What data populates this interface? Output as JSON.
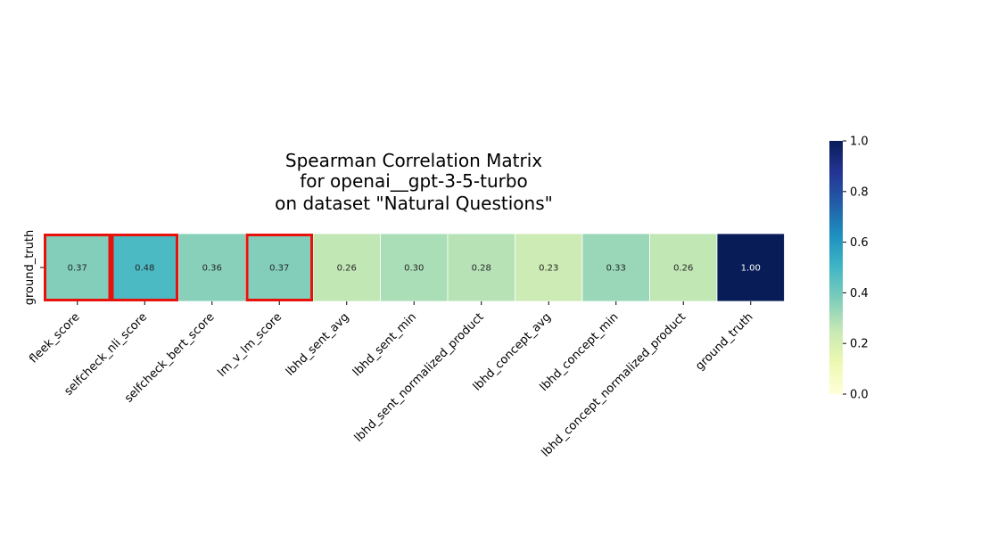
{
  "chart_data": {
    "type": "heatmap",
    "title_lines": [
      "Spearman Correlation Matrix",
      "for openai__gpt-3-5-turbo",
      "on dataset \"Natural Questions\""
    ],
    "rows": [
      "ground_truth"
    ],
    "columns": [
      "fleek_score",
      "selfcheck_nli_score",
      "selfcheck_bert_score",
      "lm_v_lm_score",
      "lbhd_sent_avg",
      "lbhd_sent_min",
      "lbhd_sent_normalized_product",
      "lbhd_concept_avg",
      "lbhd_concept_min",
      "lbhd_concept_normalized_product",
      "ground_truth"
    ],
    "values": [
      [
        0.37,
        0.48,
        0.36,
        0.37,
        0.26,
        0.3,
        0.28,
        0.23,
        0.33,
        0.26,
        1.0
      ]
    ],
    "value_labels": [
      [
        "0.37",
        "0.48",
        "0.36",
        "0.37",
        "0.26",
        "0.30",
        "0.28",
        "0.23",
        "0.33",
        "0.26",
        "1.00"
      ]
    ],
    "highlighted_columns": [
      "fleek_score",
      "selfcheck_nli_score",
      "lm_v_lm_score"
    ],
    "highlight_color": "#e8120c",
    "colormap": "YlGnBu",
    "vmin": 0.0,
    "vmax": 1.0,
    "colorbar_ticks": [
      "0.0",
      "0.2",
      "0.4",
      "0.6",
      "0.8",
      "1.0"
    ]
  }
}
